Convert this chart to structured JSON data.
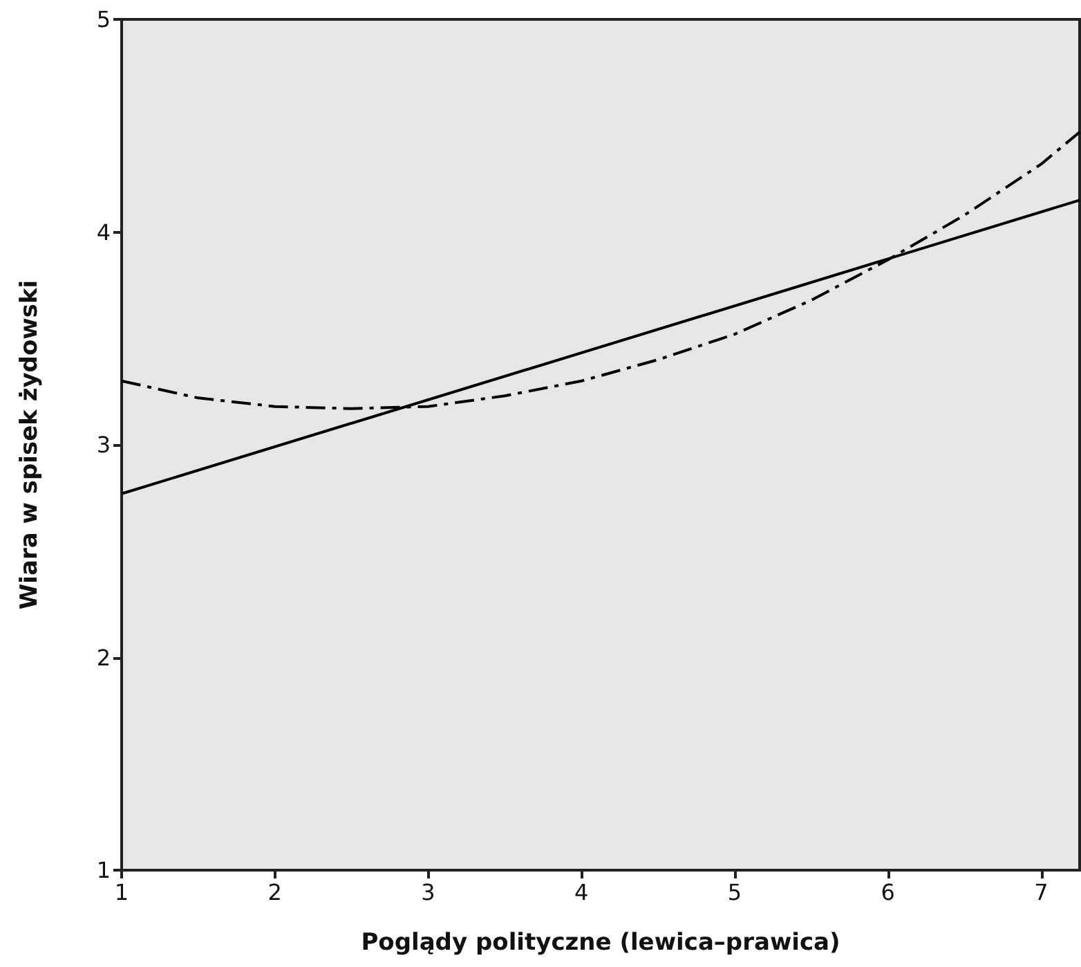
{
  "chart_data": {
    "type": "line",
    "xlabel": "Poglądy polityczne (lewica–prawica)",
    "ylabel": "Wiara w spisek żydowski",
    "xlim": [
      1,
      7.25
    ],
    "xticks": [
      1,
      2,
      3,
      4,
      5,
      6,
      7
    ],
    "ylim": [
      1,
      5
    ],
    "yticks": [
      1,
      2,
      3,
      4,
      5
    ],
    "grid": false,
    "marker": "none",
    "series": [
      {
        "color": "#000000",
        "line_style": "solid",
        "x": [
          1,
          7.25
        ],
        "values": [
          2.77,
          4.15
        ]
      },
      {
        "color": "#000000",
        "line_style": "dashed",
        "x": [
          1,
          1.5,
          2,
          2.5,
          3,
          3.5,
          4,
          4.5,
          5,
          5.5,
          6,
          6.5,
          7,
          7.25
        ],
        "values": [
          3.3,
          3.22,
          3.18,
          3.17,
          3.18,
          3.23,
          3.3,
          3.4,
          3.52,
          3.68,
          3.87,
          4.08,
          4.32,
          4.47
        ]
      }
    ]
  }
}
